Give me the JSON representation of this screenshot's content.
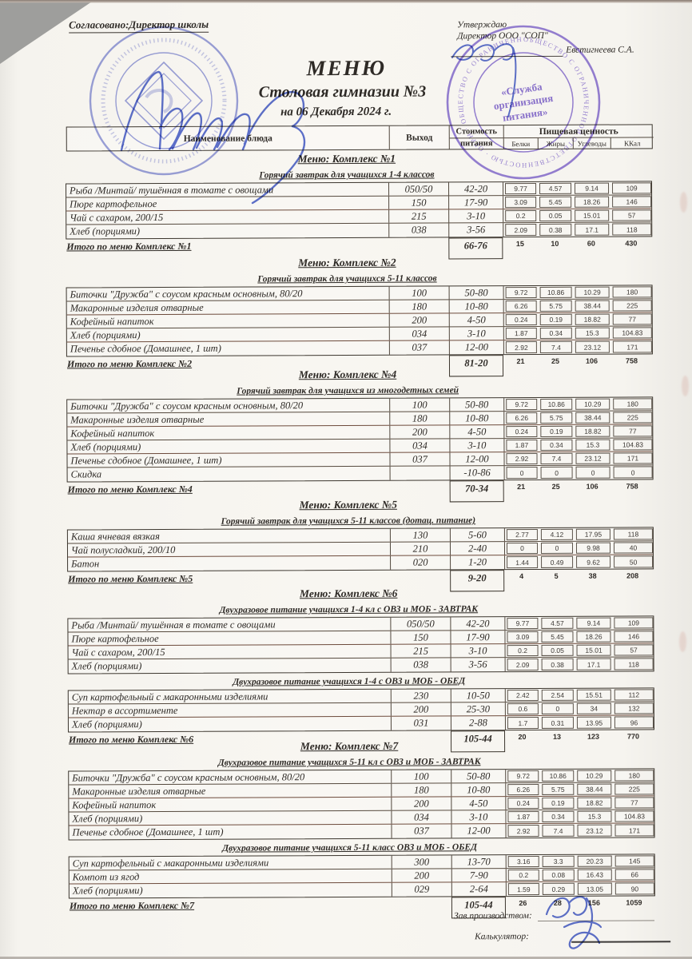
{
  "page": {
    "approve_left": "Согласовано:Директор школы",
    "approve_word": "Утверждаю",
    "approve_director": "Директор ООО \"СОП\"",
    "approve_name": "Евстигнеева С.А.",
    "title": "МЕНЮ",
    "subtitle": "Столовая гимназии №3",
    "date_line": "на 06 Декабря 2024 г.",
    "footer_label_1": "Зав.производством:",
    "footer_label_2": "Калькулятор:"
  },
  "colors": {
    "ink": "#2e2a26",
    "stamp_blue": "#6e7ad4",
    "stamp_purple": "#7e63d2",
    "signature_blue": "#4d63cc",
    "paper": "#f8f6f1"
  },
  "stamps": {
    "right_center_lines": [
      "«Служба",
      "организация",
      "питания»"
    ],
    "right_ring_text": "ОБЩЕСТВО С ОГРАНИЧЕННОЙ ОТВЕТСТВЕННОСТЬЮ · ОГРН ·"
  },
  "table_header": {
    "name": "Наименование блюда",
    "out": "Выход",
    "cost_line1": "Стоимость",
    "cost_line2": "питания",
    "nutrition": "Пищевая ценность",
    "cols": [
      "Белки",
      "Жиры",
      "Углеводы",
      "ККал"
    ]
  },
  "menus": [
    {
      "title": "Меню: Комплекс №1",
      "groups": [
        {
          "subtitle": "Горячий завтрак для учащихся 1-4 классов",
          "rows": [
            {
              "name": "Рыба  /Минтай/ тушённая в томате с овощами",
              "out": "050/50",
              "cost": "42-20",
              "n": [
                "9.77",
                "4.57",
                "9.14",
                "109"
              ]
            },
            {
              "name": "Пюре картофельное",
              "out": "150",
              "cost": "17-90",
              "n": [
                "3.09",
                "5.45",
                "18.26",
                "146"
              ]
            },
            {
              "name": "Чай с сахаром, 200/15",
              "out": "215",
              "cost": "3-10",
              "n": [
                "0.2",
                "0.05",
                "15.01",
                "57"
              ]
            },
            {
              "name": "Хлеб (порциями)",
              "out": "038",
              "cost": "3-56",
              "n": [
                "2.09",
                "0.38",
                "17.1",
                "118"
              ]
            }
          ]
        }
      ],
      "total": {
        "label": "Итого по меню Комплекс №1",
        "cost": "66-76",
        "n": [
          "15",
          "10",
          "60",
          "430"
        ]
      }
    },
    {
      "title": "Меню: Комплекс №2",
      "groups": [
        {
          "subtitle": "Горячий завтрак для учащихся 5-11 классов",
          "rows": [
            {
              "name": "Биточки  \"Дружба\" с соусом красным основным, 80/20",
              "out": "100",
              "cost": "50-80",
              "n": [
                "9.72",
                "10.86",
                "10.29",
                "180"
              ]
            },
            {
              "name": "Макаронные изделия отварные",
              "out": "180",
              "cost": "10-80",
              "n": [
                "6.26",
                "5.75",
                "38.44",
                "225"
              ]
            },
            {
              "name": "Кофейный напиток",
              "out": "200",
              "cost": "4-50",
              "n": [
                "0.24",
                "0.19",
                "18.82",
                "77"
              ]
            },
            {
              "name": "Хлеб (порциями)",
              "out": "034",
              "cost": "3-10",
              "n": [
                "1.87",
                "0.34",
                "15.3",
                "104.83"
              ]
            },
            {
              "name": "Печенье сдобное (Домашнее, 1 шт)",
              "out": "037",
              "cost": "12-00",
              "n": [
                "2.92",
                "7.4",
                "23.12",
                "171"
              ]
            }
          ]
        }
      ],
      "total": {
        "label": "Итого по меню Комплекс №2",
        "cost": "81-20",
        "n": [
          "21",
          "25",
          "106",
          "758"
        ]
      }
    },
    {
      "title": "Меню: Комплекс №4",
      "groups": [
        {
          "subtitle": "Горячий завтрак для учащихся из многодетных семей",
          "rows": [
            {
              "name": "Биточки  \"Дружба\" с соусом красным основным, 80/20",
              "out": "100",
              "cost": "50-80",
              "n": [
                "9.72",
                "10.86",
                "10.29",
                "180"
              ]
            },
            {
              "name": "Макаронные изделия отварные",
              "out": "180",
              "cost": "10-80",
              "n": [
                "6.26",
                "5.75",
                "38.44",
                "225"
              ]
            },
            {
              "name": "Кофейный напиток",
              "out": "200",
              "cost": "4-50",
              "n": [
                "0.24",
                "0.19",
                "18.82",
                "77"
              ]
            },
            {
              "name": "Хлеб (порциями)",
              "out": "034",
              "cost": "3-10",
              "n": [
                "1.87",
                "0.34",
                "15.3",
                "104.83"
              ]
            },
            {
              "name": "Печенье сдобное (Домашнее, 1 шт)",
              "out": "037",
              "cost": "12-00",
              "n": [
                "2.92",
                "7.4",
                "23.12",
                "171"
              ]
            },
            {
              "name": "Скидка",
              "out": "",
              "cost": "-10-86",
              "n": [
                "0",
                "0",
                "0",
                "0"
              ]
            }
          ]
        }
      ],
      "total": {
        "label": "Итого по меню Комплекс №4",
        "cost": "70-34",
        "n": [
          "21",
          "25",
          "106",
          "758"
        ]
      }
    },
    {
      "title": "Меню: Комплекс №5",
      "groups": [
        {
          "subtitle": "Горячий завтрак для учащихся 5-11 классов (дотац. питание)",
          "rows": [
            {
              "name": "Каша ячневая вязкая",
              "out": "130",
              "cost": "5-60",
              "n": [
                "2.77",
                "4.12",
                "17.95",
                "118"
              ]
            },
            {
              "name": "Чай полусладкий, 200/10",
              "out": "210",
              "cost": "2-40",
              "n": [
                "0",
                "0",
                "9.98",
                "40"
              ]
            },
            {
              "name": "Батон",
              "out": "020",
              "cost": "1-20",
              "n": [
                "1.44",
                "0.49",
                "9.62",
                "50"
              ]
            }
          ]
        }
      ],
      "total": {
        "label": "Итого по меню Комплекс №5",
        "cost": "9-20",
        "n": [
          "4",
          "5",
          "38",
          "208"
        ]
      }
    },
    {
      "title": "Меню: Комплекс №6",
      "groups": [
        {
          "subtitle": "Двухразовое питание учащихся 1-4 кл с ОВЗ и МОБ - ЗАВТРАК",
          "rows": [
            {
              "name": "Рыба  /Минтай/ тушённая в томате с овощами",
              "out": "050/50",
              "cost": "42-20",
              "n": [
                "9.77",
                "4.57",
                "9.14",
                "109"
              ]
            },
            {
              "name": "Пюре картофельное",
              "out": "150",
              "cost": "17-90",
              "n": [
                "3.09",
                "5.45",
                "18.26",
                "146"
              ]
            },
            {
              "name": "Чай с сахаром, 200/15",
              "out": "215",
              "cost": "3-10",
              "n": [
                "0.2",
                "0.05",
                "15.01",
                "57"
              ]
            },
            {
              "name": "Хлеб (порциями)",
              "out": "038",
              "cost": "3-56",
              "n": [
                "2.09",
                "0.38",
                "17.1",
                "118"
              ]
            }
          ]
        },
        {
          "subtitle": "Двухразовое питание учащихся 1-4 с ОВЗ и МОБ - ОБЕД",
          "rows": [
            {
              "name": "Суп картофельный с макаронными изделиями",
              "out": "230",
              "cost": "10-50",
              "n": [
                "2.42",
                "2.54",
                "15.51",
                "112"
              ]
            },
            {
              "name": "Нектар в ассортименте",
              "out": "200",
              "cost": "25-30",
              "n": [
                "0.6",
                "0",
                "34",
                "132"
              ]
            },
            {
              "name": "Хлеб (порциями)",
              "out": "031",
              "cost": "2-88",
              "n": [
                "1.7",
                "0.31",
                "13.95",
                "96"
              ]
            }
          ]
        }
      ],
      "total": {
        "label": "Итого по меню Комплекс №6",
        "cost": "105-44",
        "n": [
          "20",
          "13",
          "123",
          "770"
        ]
      }
    },
    {
      "title": "Меню: Комплекс №7",
      "groups": [
        {
          "subtitle": "Двухразовое питание учащихся 5-11 кл с  ОВЗ и МОБ - ЗАВТРАК",
          "rows": [
            {
              "name": "Биточки  \"Дружба\" с соусом красным основным, 80/20",
              "out": "100",
              "cost": "50-80",
              "n": [
                "9.72",
                "10.86",
                "10.29",
                "180"
              ]
            },
            {
              "name": "Макаронные изделия отварные",
              "out": "180",
              "cost": "10-80",
              "n": [
                "6.26",
                "5.75",
                "38.44",
                "225"
              ]
            },
            {
              "name": "Кофейный напиток",
              "out": "200",
              "cost": "4-50",
              "n": [
                "0.24",
                "0.19",
                "18.82",
                "77"
              ]
            },
            {
              "name": "Хлеб (порциями)",
              "out": "034",
              "cost": "3-10",
              "n": [
                "1.87",
                "0.34",
                "15.3",
                "104.83"
              ]
            },
            {
              "name": "Печенье сдобное (Домашнее, 1 шт)",
              "out": "037",
              "cost": "12-00",
              "n": [
                "2.92",
                "7.4",
                "23.12",
                "171"
              ]
            }
          ]
        },
        {
          "subtitle": "Двухразовое питание учащихся 5-11 класс ОВЗ и МОБ - ОБЕД",
          "rows": [
            {
              "name": "Суп картофельный с макаронными изделиями",
              "out": "300",
              "cost": "13-70",
              "n": [
                "3.16",
                "3.3",
                "20.23",
                "145"
              ]
            },
            {
              "name": "Компот из  ягод",
              "out": "200",
              "cost": "7-90",
              "n": [
                "0.2",
                "0.08",
                "16.43",
                "66"
              ]
            },
            {
              "name": "Хлеб (порциями)",
              "out": "029",
              "cost": "2-64",
              "n": [
                "1.59",
                "0.29",
                "13.05",
                "90"
              ]
            }
          ]
        }
      ],
      "total": {
        "label": "Итого по меню Комплекс №7",
        "cost": "105-44",
        "n": [
          "26",
          "28",
          "156",
          "1059"
        ]
      }
    }
  ]
}
